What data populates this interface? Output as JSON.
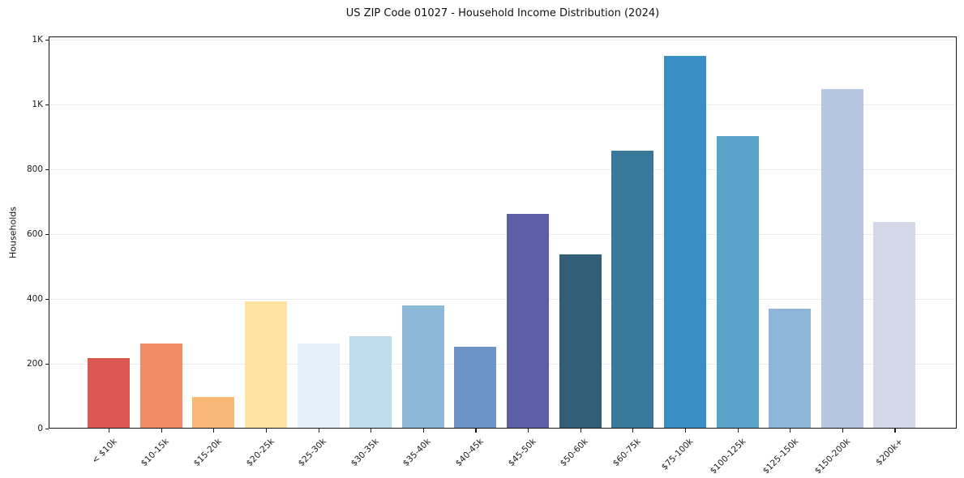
{
  "chart_data": {
    "type": "bar",
    "title": "US ZIP Code 01027 - Household Income Distribution (2024)",
    "xlabel": "",
    "ylabel": "Households",
    "categories": [
      "< $10k",
      "$10-15k",
      "$15-20k",
      "$20-25k",
      "$25-30k",
      "$30-35k",
      "$35-40k",
      "$40-45k",
      "$45-50k",
      "$50-60k",
      "$60-75k",
      "$75-100k",
      "$100-125k",
      "$125-150k",
      "$150-200k",
      "$200k+"
    ],
    "values": [
      218,
      262,
      98,
      392,
      262,
      286,
      380,
      252,
      662,
      538,
      858,
      1150,
      902,
      370,
      1048,
      638
    ],
    "bar_colors": [
      "#d95952",
      "#f28a68",
      "#fab877",
      "#fce3a2",
      "#e4f1f7",
      "#bfdcec",
      "#8cbad8",
      "#6d94c7",
      "#5a5fa8",
      "#335f76",
      "#37789b",
      "#398ec4",
      "#5aa3c9",
      "#8eb4d8",
      "#b5c7e2",
      "#d4d7e8"
    ],
    "y_ticks": [
      {
        "value": 0,
        "label": "0"
      },
      {
        "value": 200,
        "label": "200"
      },
      {
        "value": 400,
        "label": "400"
      },
      {
        "value": 600,
        "label": "600"
      },
      {
        "value": 800,
        "label": "800"
      },
      {
        "value": 1000,
        "label": "1K"
      },
      {
        "value": 1200,
        "label": "1K"
      }
    ],
    "ylim": [
      0,
      1210
    ],
    "grid": "horizontal",
    "legend": "none",
    "background_color": "#ffffff",
    "axis_color": "#15151a",
    "gridline_color": "#ebebf0",
    "title_color": "#111111",
    "tick_label_color": "#1a1a1a"
  }
}
